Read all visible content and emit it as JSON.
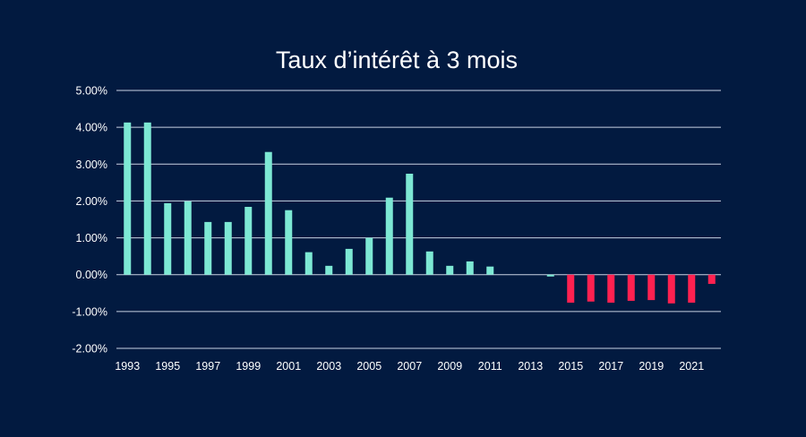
{
  "chart_data": {
    "type": "bar",
    "title": "Taux d’intérêt à 3 mois",
    "xlabel": "",
    "ylabel": "",
    "ylim": [
      -2,
      5
    ],
    "yticks": [
      5,
      4,
      3,
      2,
      1,
      0,
      -1,
      -2
    ],
    "ytick_labels": [
      "5.00%",
      "4.00%",
      "3.00%",
      "2.00%",
      "1.00%",
      "0.00%",
      "-1.00%",
      "-2.00%"
    ],
    "grid": true,
    "categories": [
      "1993",
      "1994",
      "1995",
      "1996",
      "1997",
      "1998",
      "1999",
      "2000",
      "2001",
      "2002",
      "2003",
      "2004",
      "2005",
      "2006",
      "2007",
      "2008",
      "2009",
      "2010",
      "2011",
      "2012",
      "2013",
      "2014",
      "2015",
      "2016",
      "2017",
      "2018",
      "2019",
      "2020",
      "2021",
      "2022"
    ],
    "xtick_labels": [
      "1993",
      "1995",
      "1997",
      "1999",
      "2001",
      "2003",
      "2005",
      "2007",
      "2009",
      "2011",
      "2013",
      "2015",
      "2017",
      "2019",
      "2021"
    ],
    "values": [
      4.13,
      4.13,
      1.94,
      1.99,
      1.43,
      1.43,
      1.84,
      3.33,
      1.75,
      0.61,
      0.24,
      0.7,
      1.0,
      2.09,
      2.74,
      0.63,
      0.24,
      0.36,
      0.22,
      0.0,
      0.0,
      -0.05,
      -0.76,
      -0.73,
      -0.76,
      -0.71,
      -0.69,
      -0.78,
      -0.76,
      -0.25
    ],
    "colors": {
      "background": "#021a40",
      "positive": "#7de8d4",
      "negative": "#ff2150",
      "grid": "#c9d2e3",
      "text": "#ffffff"
    }
  }
}
